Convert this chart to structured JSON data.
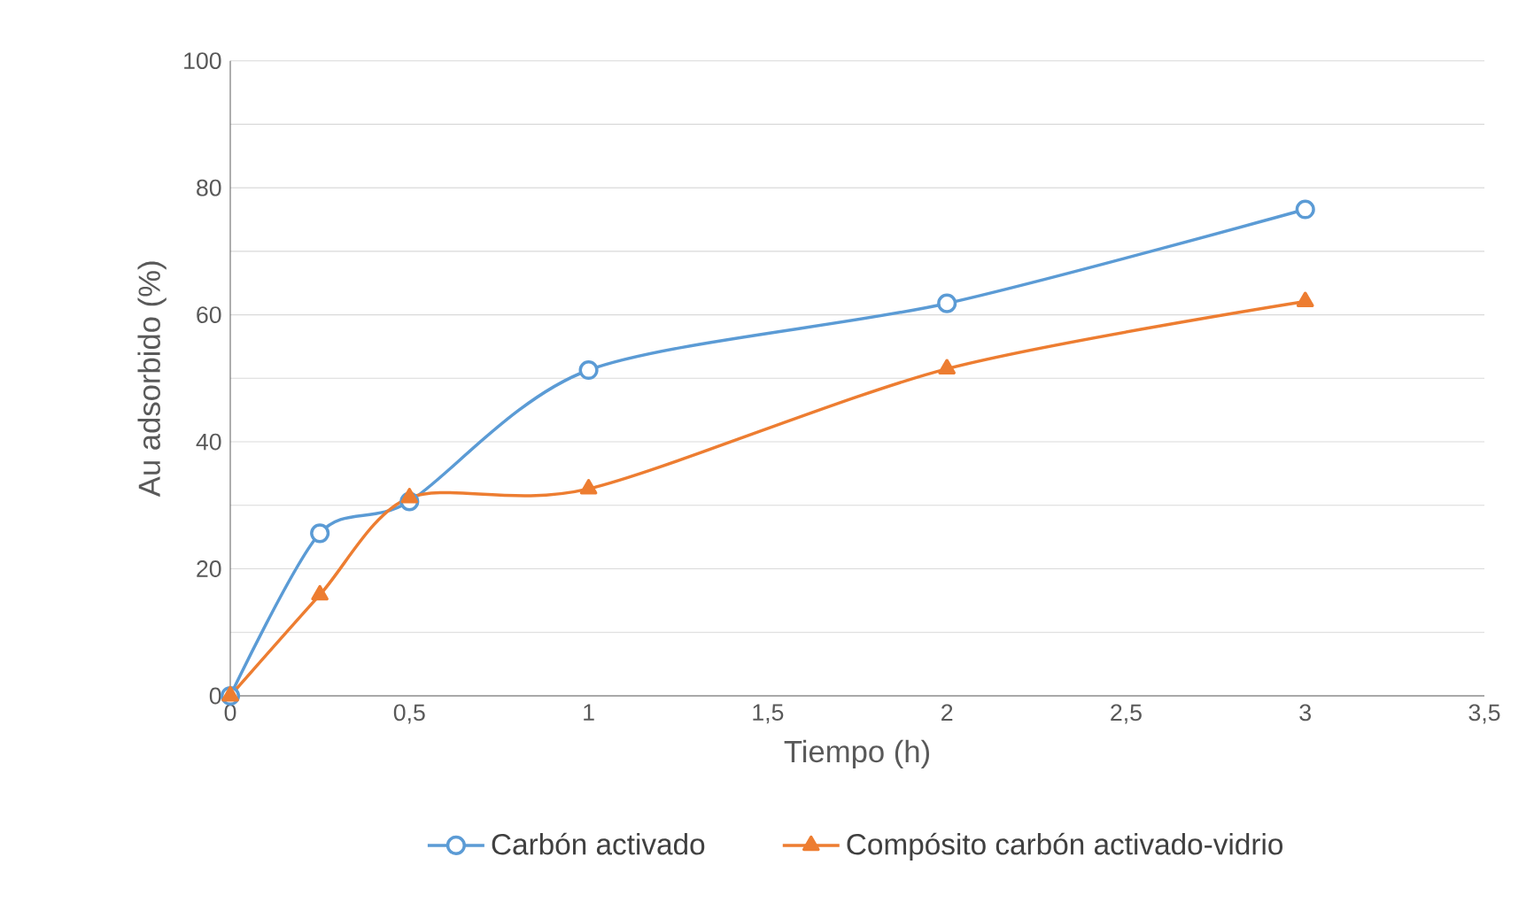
{
  "chart_data": {
    "type": "line",
    "xlabel": "Tiempo (h)",
    "ylabel": "Au adsorbido (%)",
    "xlim": [
      0,
      3.5
    ],
    "ylim": [
      0,
      100
    ],
    "xticks": [
      0,
      {
        "value": 0.5,
        "label": "0,5"
      },
      1,
      {
        "value": 1.5,
        "label": "1,5"
      },
      2,
      {
        "value": 2.5,
        "label": "2,5"
      },
      3,
      {
        "value": 3.5,
        "label": "3,5"
      }
    ],
    "yticks": [
      0,
      {
        "value": 10,
        "label": null
      },
      20,
      {
        "value": 30,
        "label": null
      },
      40,
      {
        "value": 50,
        "label": null
      },
      60,
      {
        "value": 70,
        "label": null
      },
      80,
      {
        "value": 90,
        "label": null
      },
      100
    ],
    "grid": "y",
    "legend": "bottom",
    "series": [
      {
        "name": "Carbón activado",
        "color": "#5b9bd5",
        "marker": "circle",
        "x": [
          0,
          0.25,
          0.5,
          1,
          2,
          3
        ],
        "values": [
          0,
          25.6,
          30.6,
          51.3,
          61.8,
          76.6
        ]
      },
      {
        "name": "Compósito carbón activado-vidrio",
        "color": "#ed7d31",
        "marker": "triangle",
        "x": [
          0,
          0.25,
          0.5,
          1,
          2,
          3
        ],
        "values": [
          0,
          15.9,
          31.2,
          32.6,
          51.5,
          62.1
        ]
      }
    ]
  }
}
